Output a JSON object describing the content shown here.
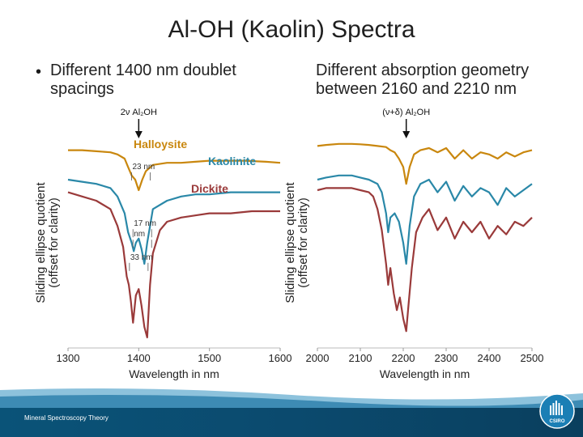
{
  "title": "Al-OH (Kaolin) Spectra",
  "left_bullet": "Different 1400 nm doublet spacings",
  "right_text": "Different absorption geometry between 2160 and 2210 nm",
  "footer_text": "Mineral Spectroscopy Theory",
  "logo_text": "CSIRO",
  "colors": {
    "halloysite": "#c9870e",
    "kaolinite": "#2a88a8",
    "dickite": "#9a3a3a",
    "footer": "#0b4a6e",
    "label_blue": "#1f6a9e"
  },
  "chart_data": [
    {
      "type": "line",
      "title": "",
      "xlabel": "Wavelength in nm",
      "ylabel": "Sliding ellipse quotient\n(offset for clarity)",
      "xlim": [
        1300,
        1600
      ],
      "ylim": [
        0,
        1
      ],
      "xticks": [
        1300,
        1400,
        1500,
        1600
      ],
      "marker_label": "2ν Al₂OH",
      "marker_x": 1400,
      "annotations": [
        {
          "text": "23 nm",
          "x": 1391,
          "y": 0.85
        },
        {
          "text": "17 nm",
          "x": 1393,
          "y": 0.58
        },
        {
          "text": "nm",
          "x": 1393,
          "y": 0.53
        },
        {
          "text": "33 nm",
          "x": 1388,
          "y": 0.42
        }
      ],
      "series": [
        {
          "name": "Halloysite",
          "x": [
            1300,
            1320,
            1340,
            1360,
            1370,
            1380,
            1385,
            1390,
            1395,
            1400,
            1405,
            1410,
            1420,
            1440,
            1460,
            1480,
            1500,
            1520,
            1550,
            1580,
            1600
          ],
          "y": [
            0.94,
            0.94,
            0.935,
            0.93,
            0.92,
            0.9,
            0.86,
            0.82,
            0.8,
            0.75,
            0.8,
            0.84,
            0.87,
            0.88,
            0.88,
            0.885,
            0.89,
            0.89,
            0.89,
            0.885,
            0.88
          ]
        },
        {
          "name": "Kaolinite",
          "x": [
            1300,
            1320,
            1340,
            1360,
            1370,
            1380,
            1385,
            1390,
            1393,
            1396,
            1400,
            1404,
            1408,
            1412,
            1420,
            1440,
            1460,
            1480,
            1500,
            1530,
            1560,
            1600
          ],
          "y": [
            0.8,
            0.79,
            0.78,
            0.76,
            0.72,
            0.64,
            0.55,
            0.5,
            0.46,
            0.5,
            0.52,
            0.47,
            0.4,
            0.5,
            0.66,
            0.7,
            0.72,
            0.73,
            0.73,
            0.74,
            0.74,
            0.74
          ]
        },
        {
          "name": "Dickite",
          "x": [
            1300,
            1320,
            1340,
            1360,
            1370,
            1378,
            1383,
            1386,
            1389,
            1392,
            1396,
            1400,
            1404,
            1408,
            1412,
            1416,
            1420,
            1430,
            1440,
            1460,
            1480,
            1500,
            1530,
            1560,
            1600
          ],
          "y": [
            0.74,
            0.72,
            0.7,
            0.66,
            0.58,
            0.48,
            0.34,
            0.3,
            0.22,
            0.12,
            0.25,
            0.28,
            0.2,
            0.1,
            0.05,
            0.3,
            0.45,
            0.56,
            0.6,
            0.62,
            0.63,
            0.64,
            0.64,
            0.65,
            0.65
          ]
        }
      ]
    },
    {
      "type": "line",
      "title": "",
      "xlabel": "Wavelength in nm",
      "ylabel": "Sliding ellipse quotient\n(offset for clarity)",
      "xlim": [
        2000,
        2500
      ],
      "ylim": [
        0,
        1
      ],
      "xticks": [
        2000,
        2100,
        2200,
        2300,
        2400,
        2500
      ],
      "marker_label": "(ν+δ) Al₂OH",
      "marker_x": 2207,
      "series": [
        {
          "name": "Halloysite",
          "x": [
            2000,
            2020,
            2050,
            2080,
            2100,
            2120,
            2140,
            2160,
            2170,
            2180,
            2190,
            2200,
            2207,
            2215,
            2225,
            2240,
            2260,
            2280,
            2300,
            2320,
            2340,
            2360,
            2380,
            2400,
            2420,
            2440,
            2460,
            2480,
            2500
          ],
          "y": [
            0.96,
            0.965,
            0.97,
            0.97,
            0.968,
            0.965,
            0.96,
            0.955,
            0.94,
            0.93,
            0.9,
            0.86,
            0.78,
            0.86,
            0.92,
            0.94,
            0.95,
            0.93,
            0.95,
            0.9,
            0.94,
            0.9,
            0.93,
            0.92,
            0.9,
            0.93,
            0.91,
            0.93,
            0.94
          ]
        },
        {
          "name": "Kaolinite",
          "x": [
            2000,
            2020,
            2050,
            2080,
            2100,
            2120,
            2140,
            2150,
            2160,
            2165,
            2170,
            2180,
            2190,
            2200,
            2207,
            2215,
            2225,
            2240,
            2260,
            2280,
            2300,
            2320,
            2340,
            2360,
            2380,
            2400,
            2420,
            2440,
            2460,
            2480,
            2500
          ],
          "y": [
            0.8,
            0.81,
            0.82,
            0.82,
            0.81,
            0.8,
            0.78,
            0.74,
            0.64,
            0.55,
            0.62,
            0.64,
            0.6,
            0.5,
            0.4,
            0.58,
            0.72,
            0.78,
            0.8,
            0.74,
            0.79,
            0.7,
            0.77,
            0.72,
            0.76,
            0.74,
            0.68,
            0.76,
            0.72,
            0.75,
            0.78
          ]
        },
        {
          "name": "Dickite",
          "x": [
            2000,
            2020,
            2050,
            2080,
            2100,
            2120,
            2130,
            2140,
            2150,
            2160,
            2165,
            2170,
            2178,
            2185,
            2192,
            2200,
            2207,
            2212,
            2220,
            2230,
            2245,
            2260,
            2280,
            2300,
            2320,
            2340,
            2360,
            2380,
            2400,
            2420,
            2440,
            2460,
            2480,
            2500
          ],
          "y": [
            0.75,
            0.76,
            0.76,
            0.76,
            0.75,
            0.74,
            0.72,
            0.66,
            0.56,
            0.4,
            0.3,
            0.38,
            0.26,
            0.18,
            0.24,
            0.14,
            0.08,
            0.2,
            0.38,
            0.55,
            0.62,
            0.66,
            0.56,
            0.62,
            0.52,
            0.6,
            0.55,
            0.6,
            0.52,
            0.58,
            0.54,
            0.6,
            0.58,
            0.62
          ]
        }
      ]
    }
  ]
}
